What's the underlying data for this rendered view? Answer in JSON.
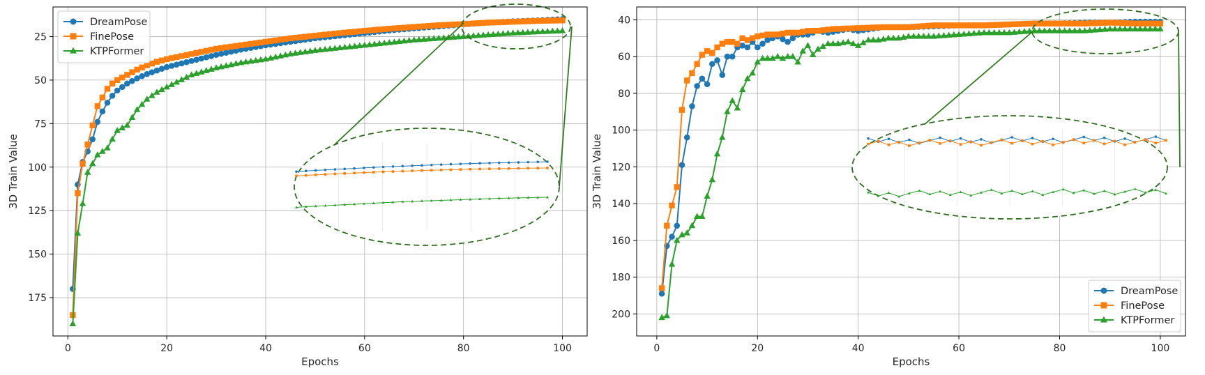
{
  "chart_data": [
    {
      "type": "line",
      "title": "",
      "xlabel": "Epochs",
      "ylabel": "3D Train Value",
      "xlim": [
        -3,
        105
      ],
      "ylim": [
        197,
        8
      ],
      "y_inverted": true,
      "xticks": [
        0,
        20,
        40,
        60,
        80,
        100
      ],
      "yticks": [
        25,
        50,
        75,
        100,
        125,
        150,
        175
      ],
      "grid": true,
      "legend_position": "top-left",
      "series": [
        {
          "name": "DreamPose",
          "color": "#1f77b4",
          "marker": "circle",
          "points": [
            [
              1,
              170
            ],
            [
              2,
              110
            ],
            [
              3,
              97
            ],
            [
              4,
              91
            ],
            [
              5,
              84
            ],
            [
              6,
              74
            ],
            [
              7,
              68
            ],
            [
              8,
              63
            ],
            [
              9,
              59
            ],
            [
              10,
              56
            ],
            [
              12,
              52
            ],
            [
              14,
              49
            ],
            [
              16,
              46.5
            ],
            [
              18,
              44.5
            ],
            [
              20,
              42.5
            ],
            [
              25,
              39
            ],
            [
              30,
              35.5
            ],
            [
              35,
              32.5
            ],
            [
              40,
              30
            ],
            [
              45,
              28
            ],
            [
              50,
              26
            ],
            [
              55,
              24.5
            ],
            [
              60,
              23
            ],
            [
              65,
              21.5
            ],
            [
              70,
              20.3
            ],
            [
              75,
              19.2
            ],
            [
              80,
              18
            ],
            [
              85,
              17
            ],
            [
              90,
              16.3
            ],
            [
              95,
              15.7
            ],
            [
              100,
              15
            ]
          ]
        },
        {
          "name": "FinePose",
          "color": "#ff7f0e",
          "marker": "square",
          "points": [
            [
              1,
              185
            ],
            [
              2,
              115
            ],
            [
              3,
              98
            ],
            [
              4,
              87
            ],
            [
              5,
              76
            ],
            [
              6,
              65
            ],
            [
              7,
              60
            ],
            [
              8,
              55
            ],
            [
              9,
              52
            ],
            [
              10,
              50
            ],
            [
              12,
              47
            ],
            [
              14,
              44
            ],
            [
              16,
              41.5
            ],
            [
              18,
              39.5
            ],
            [
              20,
              38
            ],
            [
              25,
              35
            ],
            [
              30,
              32
            ],
            [
              35,
              30
            ],
            [
              40,
              28
            ],
            [
              45,
              26
            ],
            [
              50,
              24.5
            ],
            [
              55,
              23
            ],
            [
              60,
              21.7
            ],
            [
              65,
              20.5
            ],
            [
              70,
              19.5
            ],
            [
              75,
              18.5
            ],
            [
              80,
              17.8
            ],
            [
              85,
              17
            ],
            [
              90,
              16.5
            ],
            [
              95,
              16
            ],
            [
              100,
              15.7
            ]
          ]
        },
        {
          "name": "KTPFormer",
          "color": "#2ca02c",
          "marker": "triangle",
          "points": [
            [
              1,
              190
            ],
            [
              2,
              138
            ],
            [
              3,
              121
            ],
            [
              4,
              103
            ],
            [
              5,
              98
            ],
            [
              6,
              93
            ],
            [
              7,
              91
            ],
            [
              8,
              89
            ],
            [
              9,
              84
            ],
            [
              10,
              79
            ],
            [
              12,
              76
            ],
            [
              14,
              67
            ],
            [
              16,
              61
            ],
            [
              18,
              57
            ],
            [
              20,
              54
            ],
            [
              25,
              47
            ],
            [
              30,
              43
            ],
            [
              35,
              40
            ],
            [
              40,
              38
            ],
            [
              45,
              35
            ],
            [
              50,
              33
            ],
            [
              55,
              31.5
            ],
            [
              60,
              30
            ],
            [
              65,
              28.5
            ],
            [
              70,
              27
            ],
            [
              75,
              26
            ],
            [
              80,
              25
            ],
            [
              85,
              24
            ],
            [
              90,
              23
            ],
            [
              95,
              22.3
            ],
            [
              100,
              21.7
            ]
          ]
        }
      ]
    },
    {
      "type": "line",
      "title": "",
      "xlabel": "Epochs",
      "ylabel": "3D Train Value",
      "xlim": [
        -4,
        105
      ],
      "ylim": [
        212,
        33
      ],
      "y_inverted": true,
      "xticks": [
        0,
        20,
        40,
        60,
        80,
        100
      ],
      "yticks": [
        40,
        60,
        80,
        100,
        120,
        140,
        160,
        180,
        200
      ],
      "grid": true,
      "legend_position": "bottom-right",
      "series": [
        {
          "name": "DreamPose",
          "color": "#1f77b4",
          "marker": "circle",
          "points": [
            [
              1,
              189
            ],
            [
              2,
              163
            ],
            [
              3,
              158
            ],
            [
              4,
              152
            ],
            [
              5,
              119
            ],
            [
              6,
              104
            ],
            [
              7,
              87
            ],
            [
              8,
              76
            ],
            [
              9,
              72
            ],
            [
              10,
              75
            ],
            [
              11,
              64
            ],
            [
              12,
              62
            ],
            [
              13,
              70
            ],
            [
              14,
              60
            ],
            [
              15,
              60
            ],
            [
              16,
              55
            ],
            [
              17,
              54
            ],
            [
              18,
              55
            ],
            [
              19,
              52
            ],
            [
              20,
              55
            ],
            [
              22,
              51
            ],
            [
              24,
              49
            ],
            [
              26,
              52
            ],
            [
              28,
              48
            ],
            [
              30,
              48
            ],
            [
              32,
              46
            ],
            [
              34,
              47
            ],
            [
              36,
              46
            ],
            [
              38,
              45
            ],
            [
              40,
              46
            ],
            [
              45,
              44
            ],
            [
              50,
              44
            ],
            [
              55,
              43.5
            ],
            [
              60,
              43
            ],
            [
              65,
              43
            ],
            [
              70,
              42.5
            ],
            [
              75,
              42
            ],
            [
              80,
              42
            ],
            [
              85,
              41.5
            ],
            [
              90,
              41.5
            ],
            [
              95,
              41
            ],
            [
              100,
              41
            ]
          ]
        },
        {
          "name": "FinePose",
          "color": "#ff7f0e",
          "marker": "square",
          "points": [
            [
              1,
              186
            ],
            [
              2,
              152
            ],
            [
              3,
              141
            ],
            [
              4,
              131
            ],
            [
              5,
              89
            ],
            [
              6,
              73
            ],
            [
              7,
              69
            ],
            [
              8,
              64
            ],
            [
              9,
              59
            ],
            [
              10,
              57
            ],
            [
              11,
              58
            ],
            [
              12,
              55
            ],
            [
              13,
              53
            ],
            [
              14,
              52
            ],
            [
              15,
              52
            ],
            [
              16,
              53
            ],
            [
              17,
              50
            ],
            [
              18,
              51
            ],
            [
              20,
              49
            ],
            [
              22,
              48
            ],
            [
              24,
              48
            ],
            [
              26,
              47
            ],
            [
              28,
              47
            ],
            [
              30,
              46
            ],
            [
              32,
              46
            ],
            [
              35,
              45
            ],
            [
              40,
              44.5
            ],
            [
              45,
              44
            ],
            [
              50,
              44
            ],
            [
              55,
              43
            ],
            [
              60,
              43
            ],
            [
              65,
              43
            ],
            [
              70,
              42.5
            ],
            [
              75,
              42
            ],
            [
              80,
              42
            ],
            [
              85,
              42
            ],
            [
              90,
              41.5
            ],
            [
              95,
              42
            ],
            [
              100,
              42
            ]
          ]
        },
        {
          "name": "KTPFormer",
          "color": "#2ca02c",
          "marker": "triangle",
          "points": [
            [
              1,
              202
            ],
            [
              2,
              201
            ],
            [
              3,
              173
            ],
            [
              4,
              160
            ],
            [
              5,
              157
            ],
            [
              6,
              156
            ],
            [
              7,
              152
            ],
            [
              8,
              147
            ],
            [
              9,
              147
            ],
            [
              10,
              136
            ],
            [
              11,
              127
            ],
            [
              12,
              113
            ],
            [
              13,
              104
            ],
            [
              14,
              90
            ],
            [
              15,
              84
            ],
            [
              16,
              88
            ],
            [
              17,
              78
            ],
            [
              18,
              72
            ],
            [
              19,
              69
            ],
            [
              20,
              63
            ],
            [
              21,
              61
            ],
            [
              22,
              61
            ],
            [
              23,
              61
            ],
            [
              24,
              60
            ],
            [
              25,
              61
            ],
            [
              26,
              60
            ],
            [
              27,
              60
            ],
            [
              28,
              63
            ],
            [
              29,
              57
            ],
            [
              30,
              54
            ],
            [
              31,
              59
            ],
            [
              32,
              56
            ],
            [
              34,
              53
            ],
            [
              36,
              53
            ],
            [
              38,
              52
            ],
            [
              40,
              54
            ],
            [
              42,
              51
            ],
            [
              44,
              51
            ],
            [
              46,
              50
            ],
            [
              48,
              50
            ],
            [
              50,
              49
            ],
            [
              55,
              49
            ],
            [
              60,
              48
            ],
            [
              65,
              47
            ],
            [
              70,
              47
            ],
            [
              75,
              46
            ],
            [
              80,
              46
            ],
            [
              85,
              46
            ],
            [
              90,
              45
            ],
            [
              95,
              45
            ],
            [
              100,
              45
            ]
          ]
        }
      ]
    }
  ]
}
